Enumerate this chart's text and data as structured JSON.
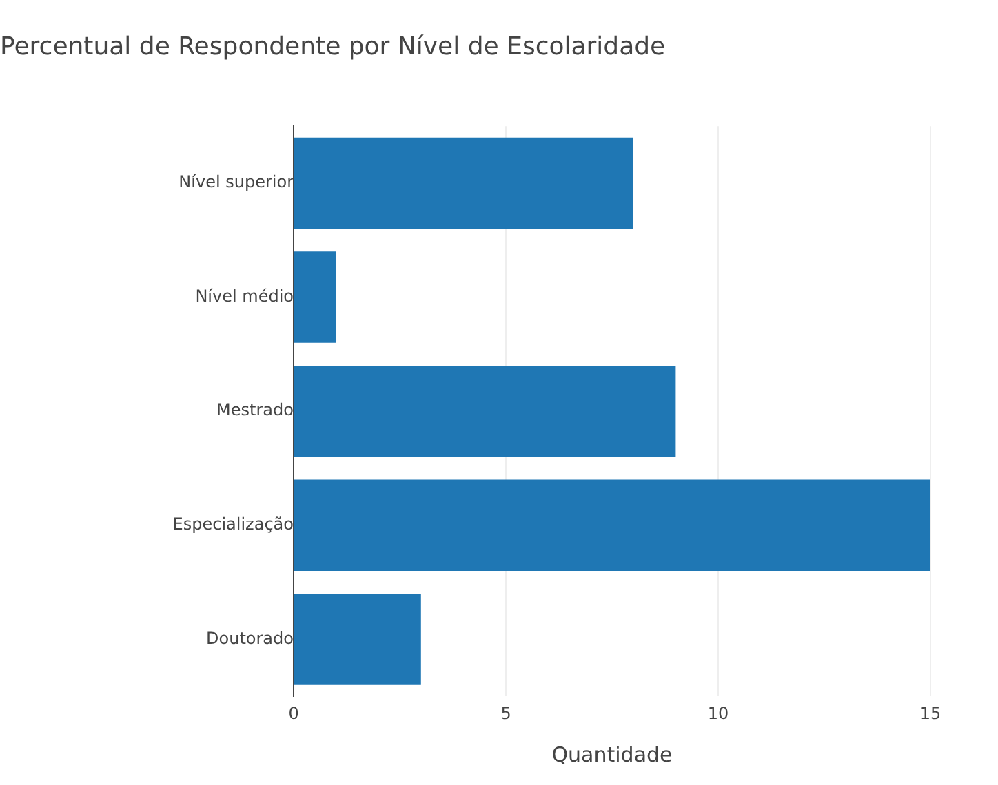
{
  "chart_data": {
    "type": "bar",
    "orientation": "horizontal",
    "title": "Percentual de Respondente por Nível de Escolaridade",
    "xlabel": "Quantidade",
    "categories": [
      "Nível superior",
      "Nível médio",
      "Mestrado",
      "Especialização",
      "Doutorado"
    ],
    "values": [
      8,
      1,
      9,
      15,
      3
    ],
    "color": "#1f77b4",
    "xlim": [
      0,
      15
    ],
    "xticks": [
      0,
      5,
      10,
      15
    ],
    "grid": "x"
  }
}
